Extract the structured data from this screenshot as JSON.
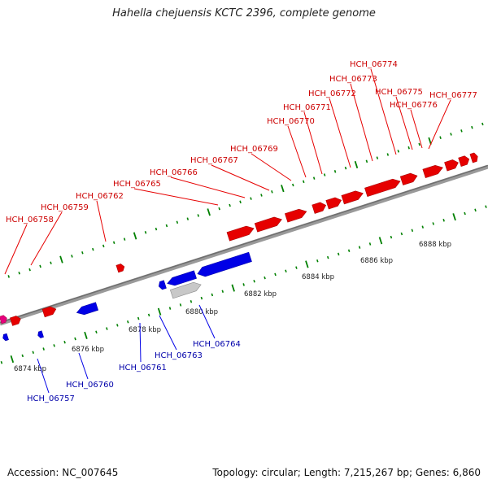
{
  "title": "Hahella chejuensis KCTC 2396, complete genome",
  "footer": {
    "accession": "Accession: NC_007645",
    "topology": "Topology: circular; Length: 7,215,267 bp; Genes: 6,860"
  },
  "colors": {
    "forward_gene": "#e60000",
    "reverse_gene": "#0000e6",
    "pseudo_gene": "#c8c8c8",
    "rna_gene": "#e6007e",
    "forward_label": "#cc0000",
    "reverse_label": "#0000aa",
    "backbone": "#808080",
    "tick": "#008000"
  },
  "scale_labels": [
    "6874 kbp",
    "6876 kbp",
    "6878 kbp",
    "6880 kbp",
    "6882 kbp",
    "6884 kbp",
    "6886 kbp",
    "6888 kbp"
  ],
  "forward_labels": [
    "HCH_06758",
    "HCH_06759",
    "HCH_06762",
    "HCH_06765",
    "HCH_06766",
    "HCH_06767",
    "HCH_06769",
    "HCH_06770",
    "HCH_06771",
    "HCH_06772",
    "HCH_06773",
    "HCH_06774",
    "HCH_06775",
    "HCH_06776",
    "HCH_06777"
  ],
  "reverse_labels": [
    "HCH_06757",
    "HCH_06760",
    "HCH_06761",
    "HCH_06763",
    "HCH_06764"
  ]
}
